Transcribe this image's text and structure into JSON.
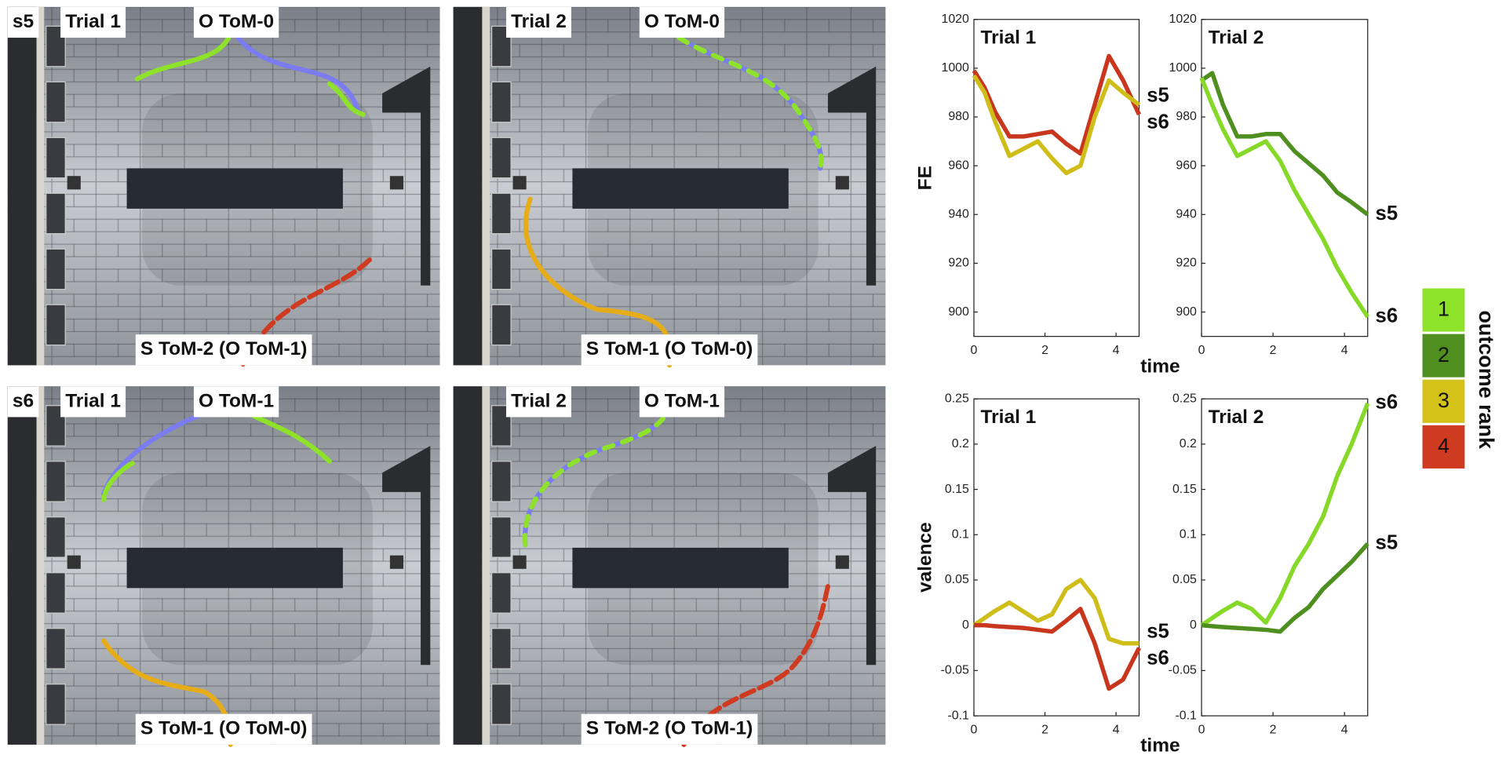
{
  "panels": [
    {
      "row_label": "s5",
      "trial": "Trial 1",
      "observer": "O ToM-0",
      "subject": "S ToM-2 (O ToM-1)"
    },
    {
      "trial": "Trial 2",
      "observer": "O ToM-0",
      "subject": "S ToM-1 (O ToM-0)"
    },
    {
      "row_label": "s6",
      "trial": "Trial 1",
      "observer": "O ToM-1",
      "subject": "S ToM-1 (O ToM-0)"
    },
    {
      "trial": "Trial 2",
      "observer": "O ToM-1",
      "subject": "S ToM-2 (O ToM-1)"
    }
  ],
  "legend": {
    "title": "outcome rank",
    "items": [
      {
        "label": "1",
        "color": "#8ee32a"
      },
      {
        "label": "2",
        "color": "#4f8f1f"
      },
      {
        "label": "3",
        "color": "#d4c21b"
      },
      {
        "label": "4",
        "color": "#cf3b20"
      }
    ]
  },
  "chart_data": [
    {
      "type": "line",
      "title": "Trial 1",
      "ylabel": "FE",
      "xlabel": "time",
      "x": [
        0,
        0.3,
        0.6,
        1,
        1.4,
        1.8,
        2.2,
        2.6,
        3,
        3.4,
        3.8,
        4.2,
        4.65
      ],
      "series": [
        {
          "name": "s6",
          "color": "#c8361d",
          "values": [
            999,
            992,
            982,
            972,
            972,
            973,
            974,
            969,
            965,
            985,
            1005,
            995,
            981
          ]
        },
        {
          "name": "s5",
          "color": "#cfbd1a",
          "values": [
            997,
            990,
            978,
            964,
            967,
            970,
            963,
            957,
            960,
            980,
            995,
            990,
            985
          ]
        }
      ],
      "xlim": [
        0,
        4.65
      ],
      "xticks": [
        0,
        2,
        4
      ],
      "ylim": [
        890,
        1020
      ],
      "yticks": [
        900,
        920,
        940,
        960,
        980,
        1000,
        1020
      ]
    },
    {
      "type": "line",
      "title": "Trial 2",
      "x": [
        0,
        0.3,
        0.6,
        1,
        1.4,
        1.8,
        2.2,
        2.6,
        3,
        3.4,
        3.8,
        4.2,
        4.65
      ],
      "series": [
        {
          "name": "s5",
          "color": "#4f8f1f",
          "values": [
            995,
            998,
            985,
            972,
            972,
            973,
            973,
            966,
            961,
            956,
            949,
            945,
            940
          ]
        },
        {
          "name": "s6",
          "color": "#86d928",
          "values": [
            996,
            985,
            975,
            964,
            967,
            970,
            962,
            950,
            940,
            930,
            918,
            908,
            898
          ]
        }
      ],
      "xlim": [
        0,
        4.65
      ],
      "xticks": [
        0,
        2,
        4
      ],
      "ylim": [
        890,
        1020
      ],
      "yticks": [
        900,
        920,
        940,
        960,
        980,
        1000,
        1020
      ]
    },
    {
      "type": "line",
      "title": "Trial 1",
      "ylabel": "valence",
      "xlabel": "time",
      "x": [
        0,
        0.3,
        0.6,
        1,
        1.4,
        1.8,
        2.2,
        2.6,
        3,
        3.4,
        3.8,
        4.2,
        4.65
      ],
      "series": [
        {
          "name": "s5",
          "color": "#cfbd1a",
          "values": [
            0,
            0.008,
            0.016,
            0.025,
            0.015,
            0.005,
            0.012,
            0.04,
            0.05,
            0.03,
            -0.015,
            -0.02,
            -0.02
          ]
        },
        {
          "name": "s6",
          "color": "#c8361d",
          "values": [
            0,
            0,
            -0.001,
            -0.002,
            -0.003,
            -0.005,
            -0.007,
            0.005,
            0.018,
            -0.02,
            -0.07,
            -0.06,
            -0.025
          ]
        }
      ],
      "xlim": [
        0,
        4.65
      ],
      "xticks": [
        0,
        2,
        4
      ],
      "ylim": [
        -0.1,
        0.25
      ],
      "yticks": [
        -0.1,
        -0.05,
        0,
        0.05,
        0.1,
        0.15,
        0.2,
        0.25
      ]
    },
    {
      "type": "line",
      "title": "Trial 2",
      "x": [
        0,
        0.3,
        0.6,
        1,
        1.4,
        1.8,
        2.2,
        2.6,
        3,
        3.4,
        3.8,
        4.2,
        4.65
      ],
      "series": [
        {
          "name": "s6",
          "color": "#86d928",
          "values": [
            0,
            0.008,
            0.016,
            0.025,
            0.018,
            0.003,
            0.03,
            0.065,
            0.09,
            0.12,
            0.165,
            0.2,
            0.245
          ]
        },
        {
          "name": "s5",
          "color": "#4f8f1f",
          "values": [
            0,
            -0.001,
            -0.002,
            -0.003,
            -0.004,
            -0.005,
            -0.007,
            0.008,
            0.02,
            0.04,
            0.055,
            0.07,
            0.09
          ]
        }
      ],
      "xlim": [
        0,
        4.65
      ],
      "xticks": [
        0,
        2,
        4
      ],
      "ylim": [
        -0.1,
        0.25
      ],
      "yticks": [
        -0.1,
        -0.05,
        0,
        0.05,
        0.1,
        0.15,
        0.2,
        0.25
      ]
    }
  ]
}
